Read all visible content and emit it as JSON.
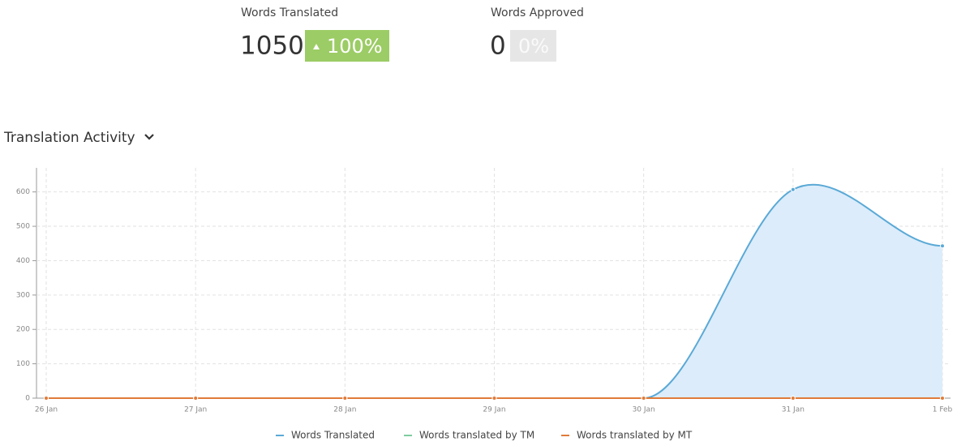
{
  "stats": [
    {
      "label": "Words Translated",
      "value": 1050,
      "change": "100%"
    },
    {
      "label": "Words Approved",
      "value": 0,
      "change": "0%"
    }
  ],
  "section_title": "Translation Activity",
  "chart_data": {
    "type": "line",
    "categories": [
      "26 Jan",
      "27 Jan",
      "28 Jan",
      "29 Jan",
      "30 Jan",
      "31 Jan",
      "1 Feb"
    ],
    "series": [
      {
        "name": "Words Translated",
        "color": "#5aa9d6",
        "values": [
          0,
          0,
          0,
          0,
          0,
          607,
          443
        ]
      },
      {
        "name": "Words translated by TM",
        "color": "#7fcba0",
        "values": [
          0,
          0,
          0,
          0,
          0,
          0,
          0
        ]
      },
      {
        "name": "Words translated by MT",
        "color": "#e07b39",
        "values": [
          0,
          0,
          0,
          0,
          0,
          0,
          0
        ]
      }
    ],
    "ylim": [
      0,
      670
    ],
    "yticks": [
      0,
      100,
      200,
      300,
      400,
      500,
      600
    ],
    "grid": true,
    "legend": "bottom"
  }
}
